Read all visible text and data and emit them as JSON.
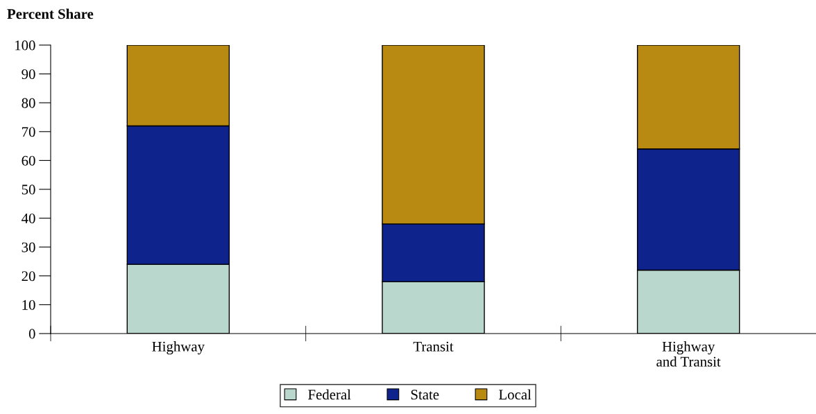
{
  "chart_data": {
    "type": "bar",
    "stacked": true,
    "ylabel": "Percent Share",
    "categories": [
      "Highway",
      "Transit",
      "Highway\nand Transit"
    ],
    "series": [
      {
        "name": "Federal",
        "color": "#b9d7cc",
        "values": [
          24,
          18,
          22
        ]
      },
      {
        "name": "State",
        "color": "#0f238c",
        "values": [
          48,
          20,
          42
        ]
      },
      {
        "name": "Local",
        "color": "#b88a12",
        "values": [
          28,
          62,
          36
        ]
      }
    ],
    "ylim": [
      0,
      100
    ],
    "yticks": [
      0,
      10,
      20,
      30,
      40,
      50,
      60,
      70,
      80,
      90,
      100
    ],
    "grid": false,
    "legend": "bottom"
  }
}
